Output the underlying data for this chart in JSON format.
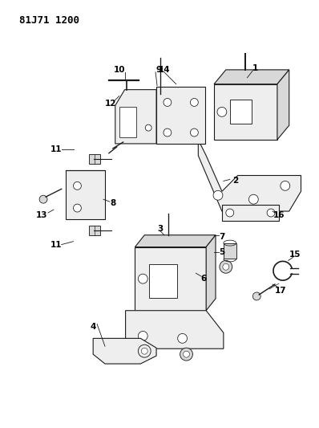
{
  "title": "81J71 1200",
  "bg_color": "#ffffff",
  "line_color": "#1a1a1a",
  "label_color": "#000000",
  "title_fontsize": 9,
  "label_fontsize": 7.5,
  "gray_fill": "#d8d8d8",
  "light_fill": "#eeeeee",
  "white_fill": "#ffffff"
}
